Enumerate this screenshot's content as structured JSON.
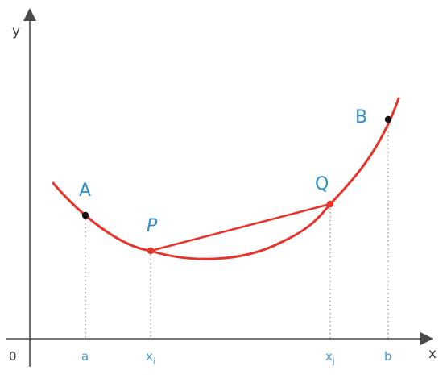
{
  "axes": {
    "x_label": "x",
    "y_label": "y",
    "origin_label": "0"
  },
  "ticks": [
    {
      "label": "a"
    },
    {
      "label": "x",
      "subscript": "i"
    },
    {
      "label": "x",
      "subscript": "j"
    },
    {
      "label": "b"
    }
  ],
  "points": [
    {
      "label": "A"
    },
    {
      "label": "P"
    },
    {
      "label": "Q"
    },
    {
      "label": "B"
    }
  ],
  "colors": {
    "curve": "#e8332b",
    "labels": "#2f8fd0",
    "black_point": "#111111",
    "red_point": "#e8332b"
  }
}
